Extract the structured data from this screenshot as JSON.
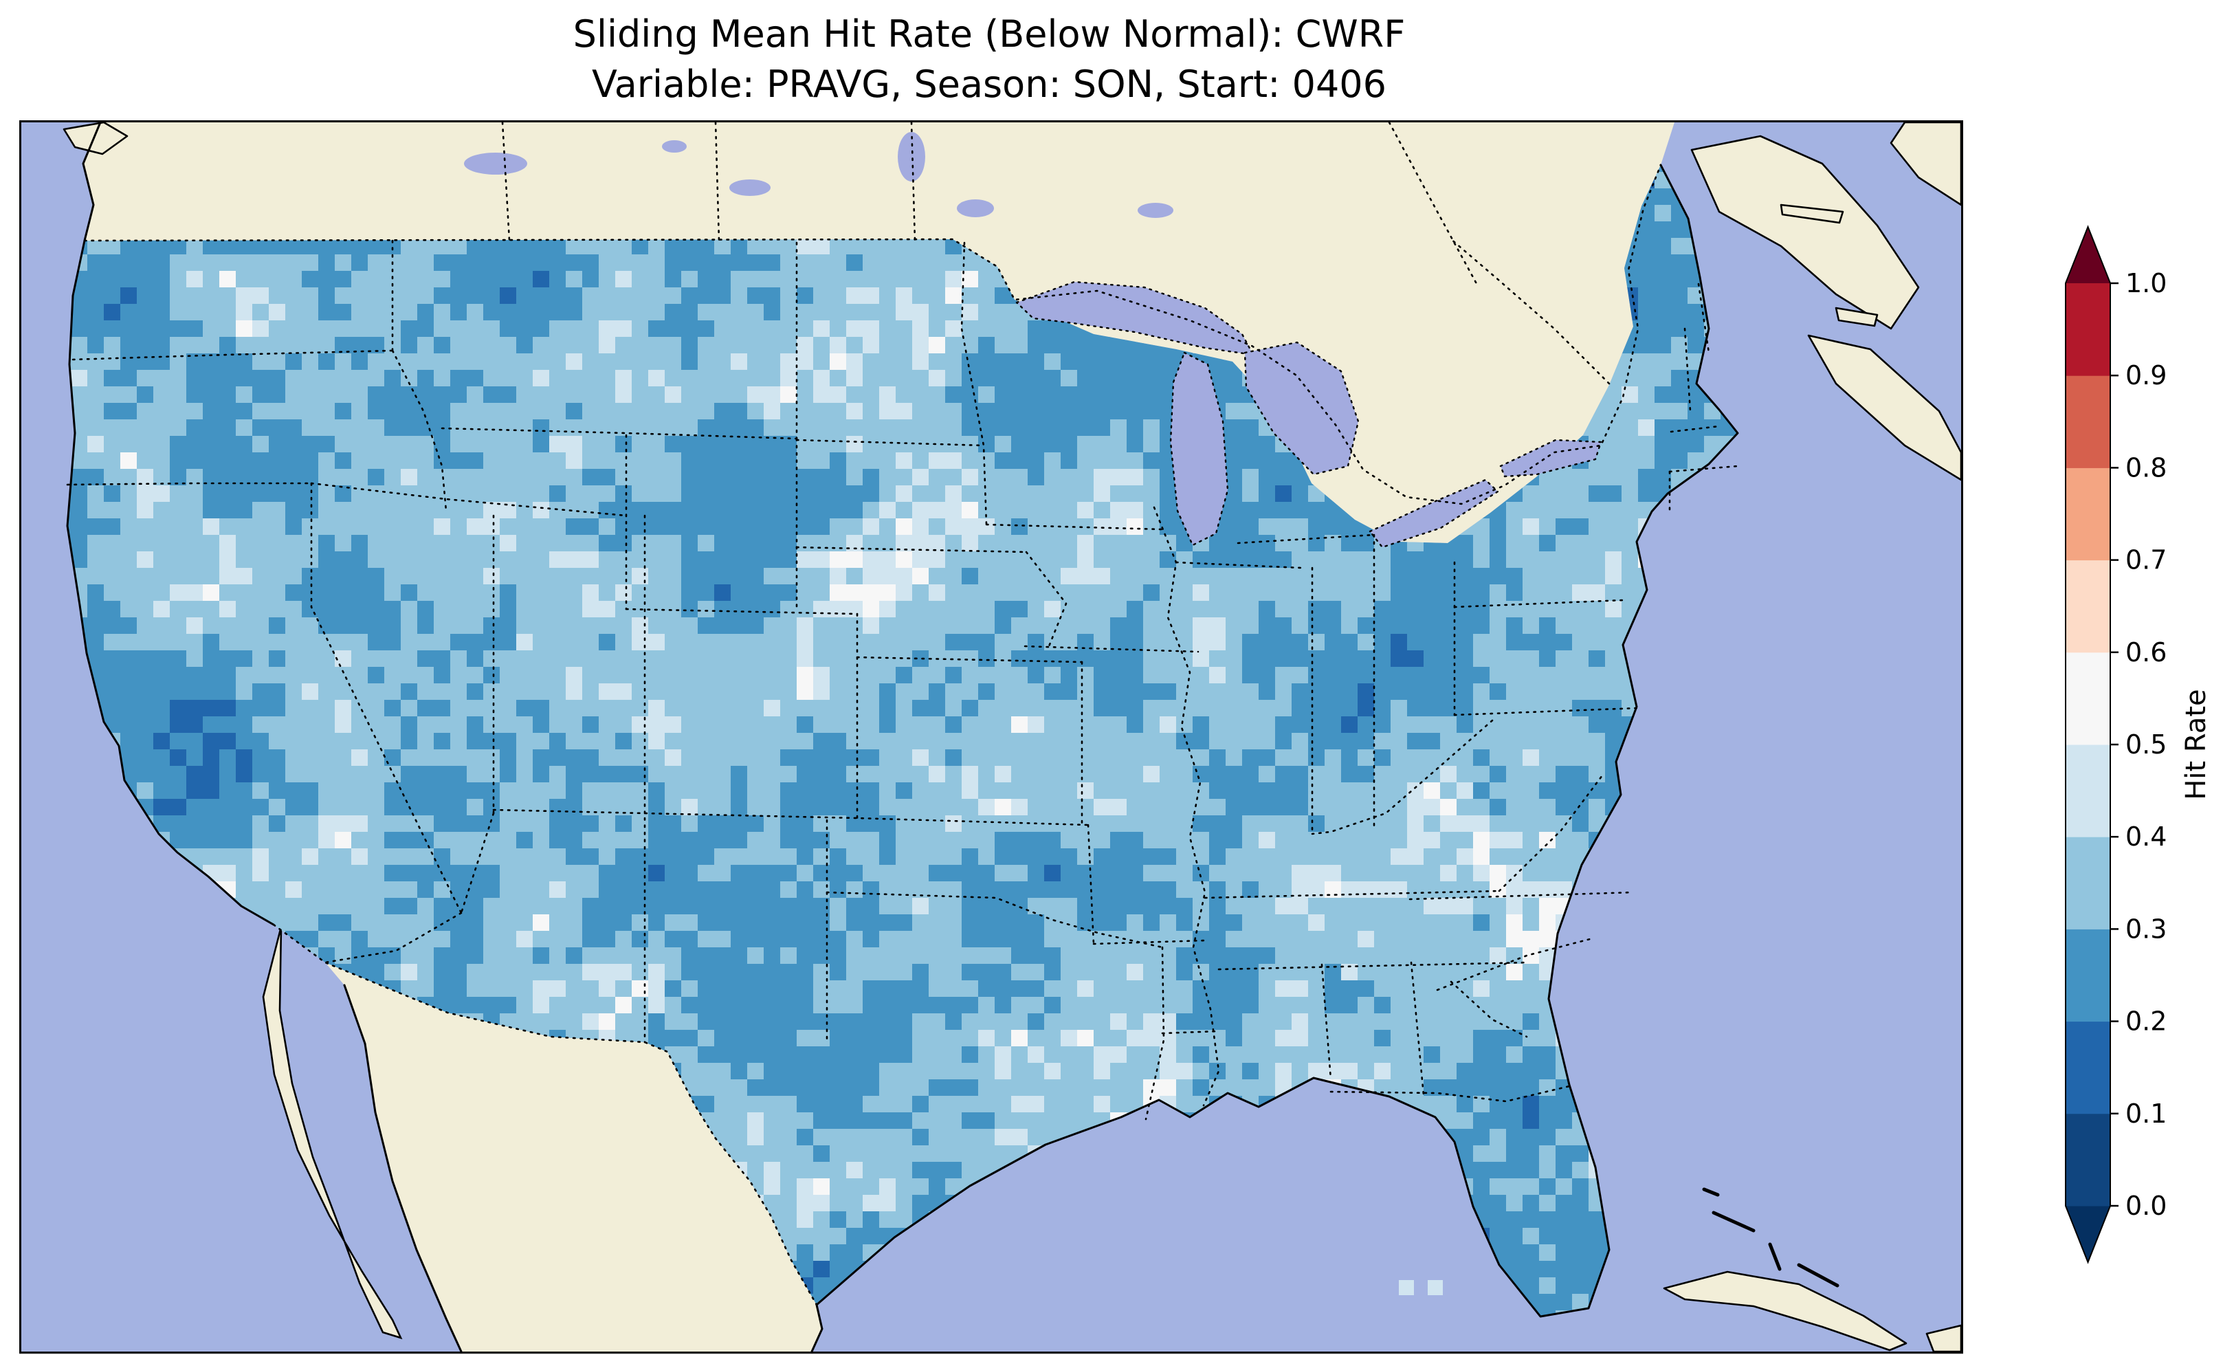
{
  "figure": {
    "title_line1": "Sliding Mean Hit Rate (Below Normal): CWRF",
    "title_line2": "Variable: PRAVG, Season: SON, Start: 0406"
  },
  "map": {
    "ocean_color": "#a4b3e2",
    "land_color": "#f2eed8",
    "lake_color": "#a3abdf",
    "coastline_color": "#000000",
    "border_color": "#000000"
  },
  "colorbar": {
    "label": "Hit Rate",
    "ticks": [
      "0.0",
      "0.1",
      "0.2",
      "0.3",
      "0.4",
      "0.5",
      "0.6",
      "0.7",
      "0.8",
      "0.9",
      "1.0"
    ],
    "segment_colors_bottom_to_top": [
      "#10457f",
      "#2166ac",
      "#4393c3",
      "#92c5de",
      "#d1e5f0",
      "#f7f7f7",
      "#fddbc7",
      "#f4a582",
      "#d6604d",
      "#b2182b"
    ],
    "under_arrow_color": "#053061",
    "over_arrow_color": "#67001f"
  },
  "chart_data": {
    "type": "heatmap",
    "title": "Sliding Mean Hit Rate (Below Normal): CWRF",
    "subtitle": "Variable: PRAVG, Season: SON, Start: 0406",
    "model": "CWRF",
    "statistic": "Sliding Mean Hit Rate (Below Normal)",
    "variable": "PRAVG",
    "season": "SON",
    "start": "0406",
    "region": "Contiguous United States (gridded field)",
    "colorbar_label": "Hit Rate",
    "colorbar_ticks": [
      0.0,
      0.1,
      0.2,
      0.3,
      0.4,
      0.5,
      0.6,
      0.7,
      0.8,
      0.9,
      1.0
    ],
    "displayed_value_range": [
      0.1,
      0.6
    ],
    "summary": "Hit rates across CONUS fall mostly between 0.2 and 0.4; scattered cells reach 0.4–0.6 and isolated cells drop to 0.1–0.2.",
    "bins": [
      {
        "range": [
          0.1,
          0.2
        ],
        "color": "#2166ac",
        "approx_area_fraction": 0.01
      },
      {
        "range": [
          0.2,
          0.3
        ],
        "color": "#4393c3",
        "approx_area_fraction": 0.36
      },
      {
        "range": [
          0.3,
          0.4
        ],
        "color": "#92c5de",
        "approx_area_fraction": 0.53
      },
      {
        "range": [
          0.4,
          0.5
        ],
        "color": "#d1e5f0",
        "approx_area_fraction": 0.08
      },
      {
        "range": [
          0.5,
          0.6
        ],
        "color": "#f7f7f7",
        "approx_area_fraction": 0.02
      }
    ]
  }
}
